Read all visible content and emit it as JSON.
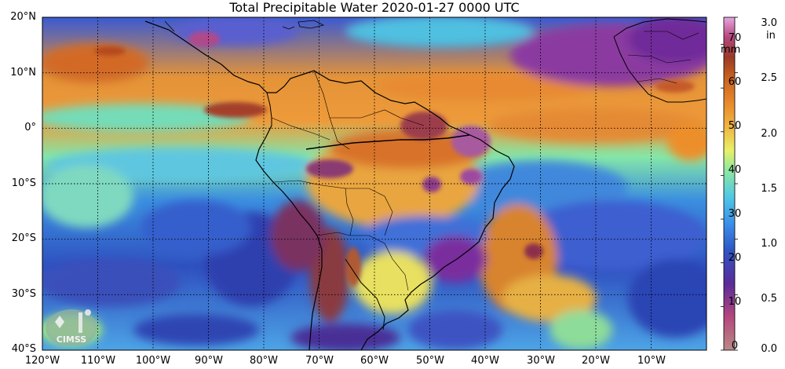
{
  "title": "Total Precipitable Water  2020-01-27 0000 UTC",
  "latitude_labels": [
    "20°N",
    "10°N",
    "0°",
    "10°S",
    "20°S",
    "30°S",
    "40°S"
  ],
  "longitude_labels": [
    "120°W",
    "110°W",
    "100°W",
    "90°W",
    "80°W",
    "70°W",
    "60°W",
    "50°W",
    "40°W",
    "30°W",
    "20°W",
    "10°W"
  ],
  "colorbar": {
    "unit_mm": "mm",
    "unit_in": "in",
    "mm_ticks": [
      "70",
      "60",
      "50",
      "40",
      "30",
      "20",
      "10",
      "0"
    ],
    "in_ticks": [
      "3.0",
      "2.5",
      "2.0",
      "1.5",
      "1.0",
      "0.5",
      "0.0"
    ],
    "range_mm": [
      0,
      76.2
    ],
    "colors": [
      "#b98a86",
      "#b5477d",
      "#5a2b9a",
      "#2f56c4",
      "#3b8fe8",
      "#50c8e6",
      "#8ee8a0",
      "#e8f06a",
      "#f0b640",
      "#e98a2c",
      "#c8601e",
      "#9a3a28",
      "#b5477d",
      "#e6a6e0"
    ]
  },
  "logo": {
    "text": "CIMSS"
  }
}
